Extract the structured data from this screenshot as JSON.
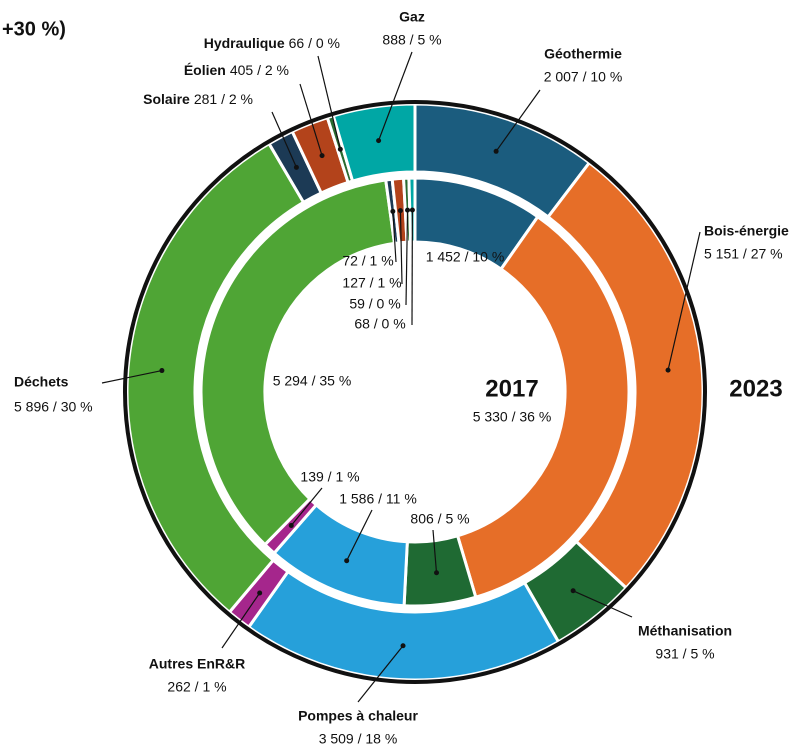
{
  "chart_data": {
    "type": "donut",
    "title": "+30 %)",
    "categories": [
      "Géothermie",
      "Bois-énergie",
      "Méthanisation",
      "Pompes à chaleur",
      "Autres EnR&R",
      "Déchets",
      "Solaire",
      "Éolien",
      "Hydraulique",
      "Gaz"
    ],
    "colors": [
      "#1b5c7e",
      "#e66e28",
      "#1f6a33",
      "#26a0da",
      "#a5268c",
      "#4fa535",
      "#1c3a55",
      "#b3431b",
      "#2a6a30",
      "#00a7a5"
    ],
    "series": [
      {
        "name": "2023",
        "values": [
          2007,
          5151,
          931,
          3509,
          262,
          5896,
          281,
          405,
          66,
          888
        ],
        "value_labels": [
          "2 007 / 10 %",
          "5 151 / 27 %",
          "931 / 5 %",
          "3 509 / 18 %",
          "262 / 1 %",
          "5 896 / 30 %",
          "281 / 2 %",
          "405 / 2 %",
          "66 / 0 %",
          "888 / 5 %"
        ]
      },
      {
        "name": "2017",
        "values": [
          1452,
          5330,
          806,
          1586,
          139,
          5294,
          72,
          127,
          59,
          68
        ],
        "value_labels": [
          "1 452 / 10 %",
          "5 330 / 36 %",
          "806 / 5 %",
          "1 586 / 11 %",
          "139 / 1 %",
          "5 294 / 35 %",
          "72 / 1 %",
          "127 / 1 %",
          "59 / 0 %",
          "68 / 0 %"
        ]
      }
    ]
  }
}
